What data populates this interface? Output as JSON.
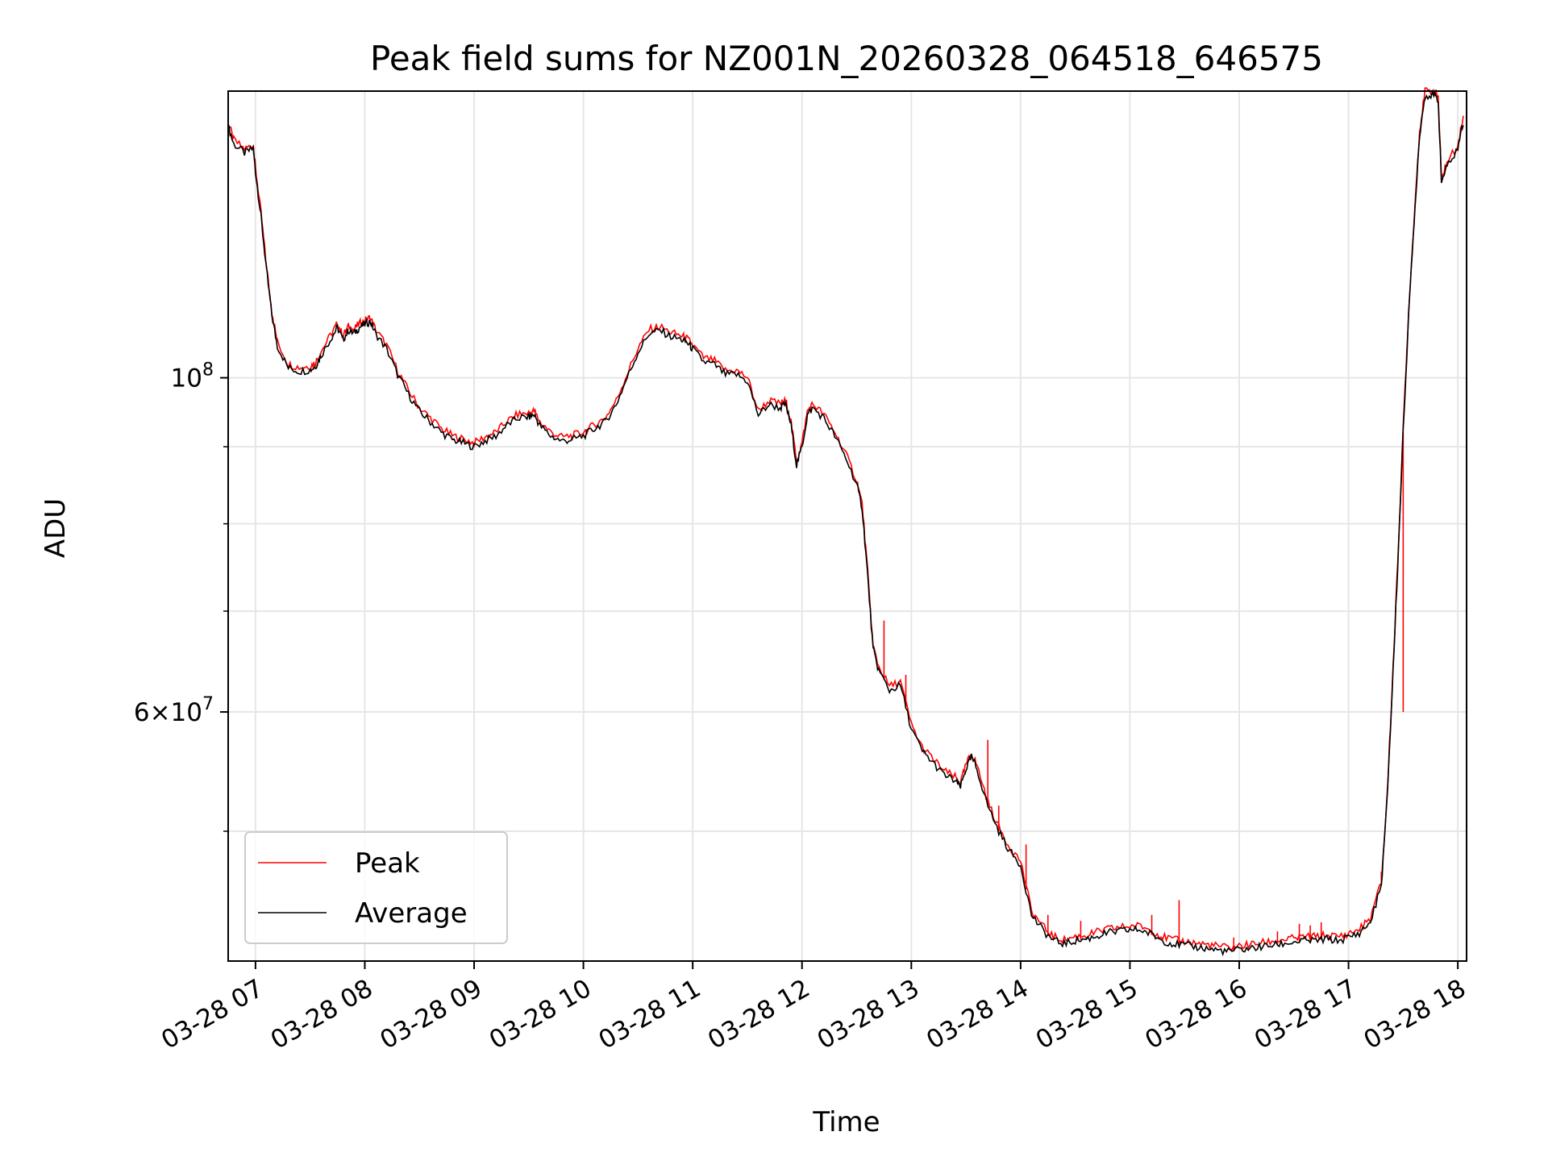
{
  "chart_data": {
    "type": "line",
    "title": "Peak field sums for NZ001N_20260328_064518_646575",
    "xlabel": "Time",
    "ylabel": "ADU",
    "y_scale": "log",
    "grid": true,
    "legend_position": "lower-left",
    "xlim_hours": [
      6.75,
      18.08
    ],
    "ylim": [
      41000000,
      155000000
    ],
    "x_ticks": [
      {
        "hour": 7,
        "label": "03-28 07"
      },
      {
        "hour": 8,
        "label": "03-28 08"
      },
      {
        "hour": 9,
        "label": "03-28 09"
      },
      {
        "hour": 10,
        "label": "03-28 10"
      },
      {
        "hour": 11,
        "label": "03-28 11"
      },
      {
        "hour": 12,
        "label": "03-28 12"
      },
      {
        "hour": 13,
        "label": "03-28 13"
      },
      {
        "hour": 14,
        "label": "03-28 14"
      },
      {
        "hour": 15,
        "label": "03-28 15"
      },
      {
        "hour": 16,
        "label": "03-28 16"
      },
      {
        "hour": 17,
        "label": "03-28 17"
      },
      {
        "hour": 18,
        "label": "03-28 18"
      }
    ],
    "y_ticks_major": [
      {
        "value": 100000000,
        "base": "10",
        "exp": "8"
      },
      {
        "value": 60000000,
        "mant": "6",
        "base": "10",
        "exp": "7"
      }
    ],
    "y_ticks_minor": [
      50000000,
      70000000,
      80000000,
      90000000
    ],
    "series": [
      {
        "name": "Average",
        "color": "#000000",
        "points": [
          [
            6.75,
            147000000
          ],
          [
            6.8,
            143000000
          ],
          [
            6.9,
            141000000
          ],
          [
            6.98,
            142000000
          ],
          [
            7.0,
            137000000
          ],
          [
            7.05,
            128000000
          ],
          [
            7.1,
            118000000
          ],
          [
            7.15,
            110000000
          ],
          [
            7.2,
            105000000
          ],
          [
            7.3,
            101500000
          ],
          [
            7.4,
            101000000
          ],
          [
            7.5,
            101200000
          ],
          [
            7.55,
            101800000
          ],
          [
            7.6,
            103500000
          ],
          [
            7.7,
            106500000
          ],
          [
            7.75,
            108000000
          ],
          [
            7.8,
            106000000
          ],
          [
            7.85,
            107500000
          ],
          [
            7.9,
            107000000
          ],
          [
            7.95,
            108000000
          ],
          [
            8.0,
            108500000
          ],
          [
            8.05,
            109000000
          ],
          [
            8.1,
            107000000
          ],
          [
            8.2,
            104500000
          ],
          [
            8.3,
            100500000
          ],
          [
            8.4,
            97500000
          ],
          [
            8.5,
            95000000
          ],
          [
            8.6,
            93500000
          ],
          [
            8.7,
            92000000
          ],
          [
            8.8,
            91000000
          ],
          [
            8.9,
            90500000
          ],
          [
            9.0,
            90000000
          ],
          [
            9.1,
            90800000
          ],
          [
            9.2,
            91500000
          ],
          [
            9.3,
            93000000
          ],
          [
            9.4,
            94000000
          ],
          [
            9.5,
            94200000
          ],
          [
            9.55,
            94500000
          ],
          [
            9.6,
            93000000
          ],
          [
            9.7,
            91500000
          ],
          [
            9.8,
            90800000
          ],
          [
            9.9,
            91000000
          ],
          [
            10.0,
            91500000
          ],
          [
            10.1,
            92500000
          ],
          [
            10.2,
            93500000
          ],
          [
            10.3,
            96000000
          ],
          [
            10.4,
            100000000
          ],
          [
            10.5,
            104000000
          ],
          [
            10.6,
            107000000
          ],
          [
            10.7,
            107500000
          ],
          [
            10.8,
            106500000
          ],
          [
            10.9,
            106000000
          ],
          [
            10.95,
            105500000
          ],
          [
            11.0,
            104500000
          ],
          [
            11.1,
            102500000
          ],
          [
            11.2,
            102000000
          ],
          [
            11.3,
            100500000
          ],
          [
            11.4,
            100500000
          ],
          [
            11.5,
            99500000
          ],
          [
            11.6,
            94500000
          ],
          [
            11.7,
            96000000
          ],
          [
            11.8,
            95500000
          ],
          [
            11.85,
            96000000
          ],
          [
            11.9,
            93000000
          ],
          [
            11.95,
            87500000
          ],
          [
            12.0,
            90000000
          ],
          [
            12.05,
            94500000
          ],
          [
            12.1,
            95500000
          ],
          [
            12.2,
            94000000
          ],
          [
            12.3,
            91500000
          ],
          [
            12.4,
            88500000
          ],
          [
            12.5,
            85000000
          ],
          [
            12.55,
            82000000
          ],
          [
            12.6,
            74000000
          ],
          [
            12.65,
            66000000
          ],
          [
            12.7,
            64000000
          ],
          [
            12.8,
            62000000
          ],
          [
            12.9,
            62500000
          ],
          [
            13.0,
            58500000
          ],
          [
            13.1,
            56500000
          ],
          [
            13.2,
            55500000
          ],
          [
            13.3,
            54500000
          ],
          [
            13.4,
            54000000
          ],
          [
            13.45,
            53500000
          ],
          [
            13.5,
            55000000
          ],
          [
            13.55,
            56000000
          ],
          [
            13.6,
            55000000
          ],
          [
            13.7,
            52000000
          ],
          [
            13.8,
            50000000
          ],
          [
            13.9,
            48500000
          ],
          [
            14.0,
            47500000
          ],
          [
            14.1,
            44000000
          ],
          [
            14.2,
            43000000
          ],
          [
            14.3,
            42300000
          ],
          [
            14.4,
            42100000
          ],
          [
            14.5,
            42300000
          ],
          [
            14.6,
            42400000
          ],
          [
            14.7,
            42600000
          ],
          [
            14.8,
            42800000
          ],
          [
            14.9,
            42900000
          ],
          [
            15.0,
            43000000
          ],
          [
            15.1,
            43000000
          ],
          [
            15.2,
            42700000
          ],
          [
            15.3,
            42300000
          ],
          [
            15.4,
            42100000
          ],
          [
            15.5,
            42000000
          ],
          [
            15.6,
            41900000
          ],
          [
            15.7,
            41800000
          ],
          [
            15.8,
            41700000
          ],
          [
            15.9,
            41600000
          ],
          [
            16.0,
            41700000
          ],
          [
            16.1,
            41800000
          ],
          [
            16.2,
            41900000
          ],
          [
            16.3,
            42000000
          ],
          [
            16.4,
            42100000
          ],
          [
            16.5,
            42200000
          ],
          [
            16.6,
            42300000
          ],
          [
            16.7,
            42300000
          ],
          [
            16.8,
            42400000
          ],
          [
            16.9,
            42300000
          ],
          [
            17.0,
            42500000
          ],
          [
            17.1,
            42800000
          ],
          [
            17.2,
            43500000
          ],
          [
            17.3,
            46000000
          ],
          [
            17.35,
            52000000
          ],
          [
            17.4,
            62000000
          ],
          [
            17.45,
            75000000
          ],
          [
            17.5,
            92000000
          ],
          [
            17.55,
            110000000
          ],
          [
            17.6,
            127000000
          ],
          [
            17.65,
            145000000
          ],
          [
            17.7,
            154000000
          ],
          [
            17.78,
            154000000
          ],
          [
            17.82,
            153000000
          ],
          [
            17.85,
            135000000
          ],
          [
            17.9,
            138000000
          ],
          [
            18.0,
            142000000
          ],
          [
            18.05,
            148000000
          ]
        ]
      },
      {
        "name": "Peak",
        "color": "#ff0000",
        "offset": 1.006,
        "spikes": [
          [
            12.75,
            69000000
          ],
          [
            12.95,
            63500000
          ],
          [
            13.7,
            57500000
          ],
          [
            13.8,
            52000000
          ],
          [
            14.05,
            49000000
          ],
          [
            14.25,
            44000000
          ],
          [
            14.55,
            43600000
          ],
          [
            15.2,
            44000000
          ],
          [
            15.45,
            45000000
          ],
          [
            15.95,
            42500000
          ],
          [
            16.35,
            42900000
          ],
          [
            16.55,
            43400000
          ],
          [
            16.65,
            43300000
          ],
          [
            16.75,
            43500000
          ],
          [
            17.3,
            47000000
          ],
          [
            17.5,
            60000000
          ]
        ]
      }
    ]
  }
}
